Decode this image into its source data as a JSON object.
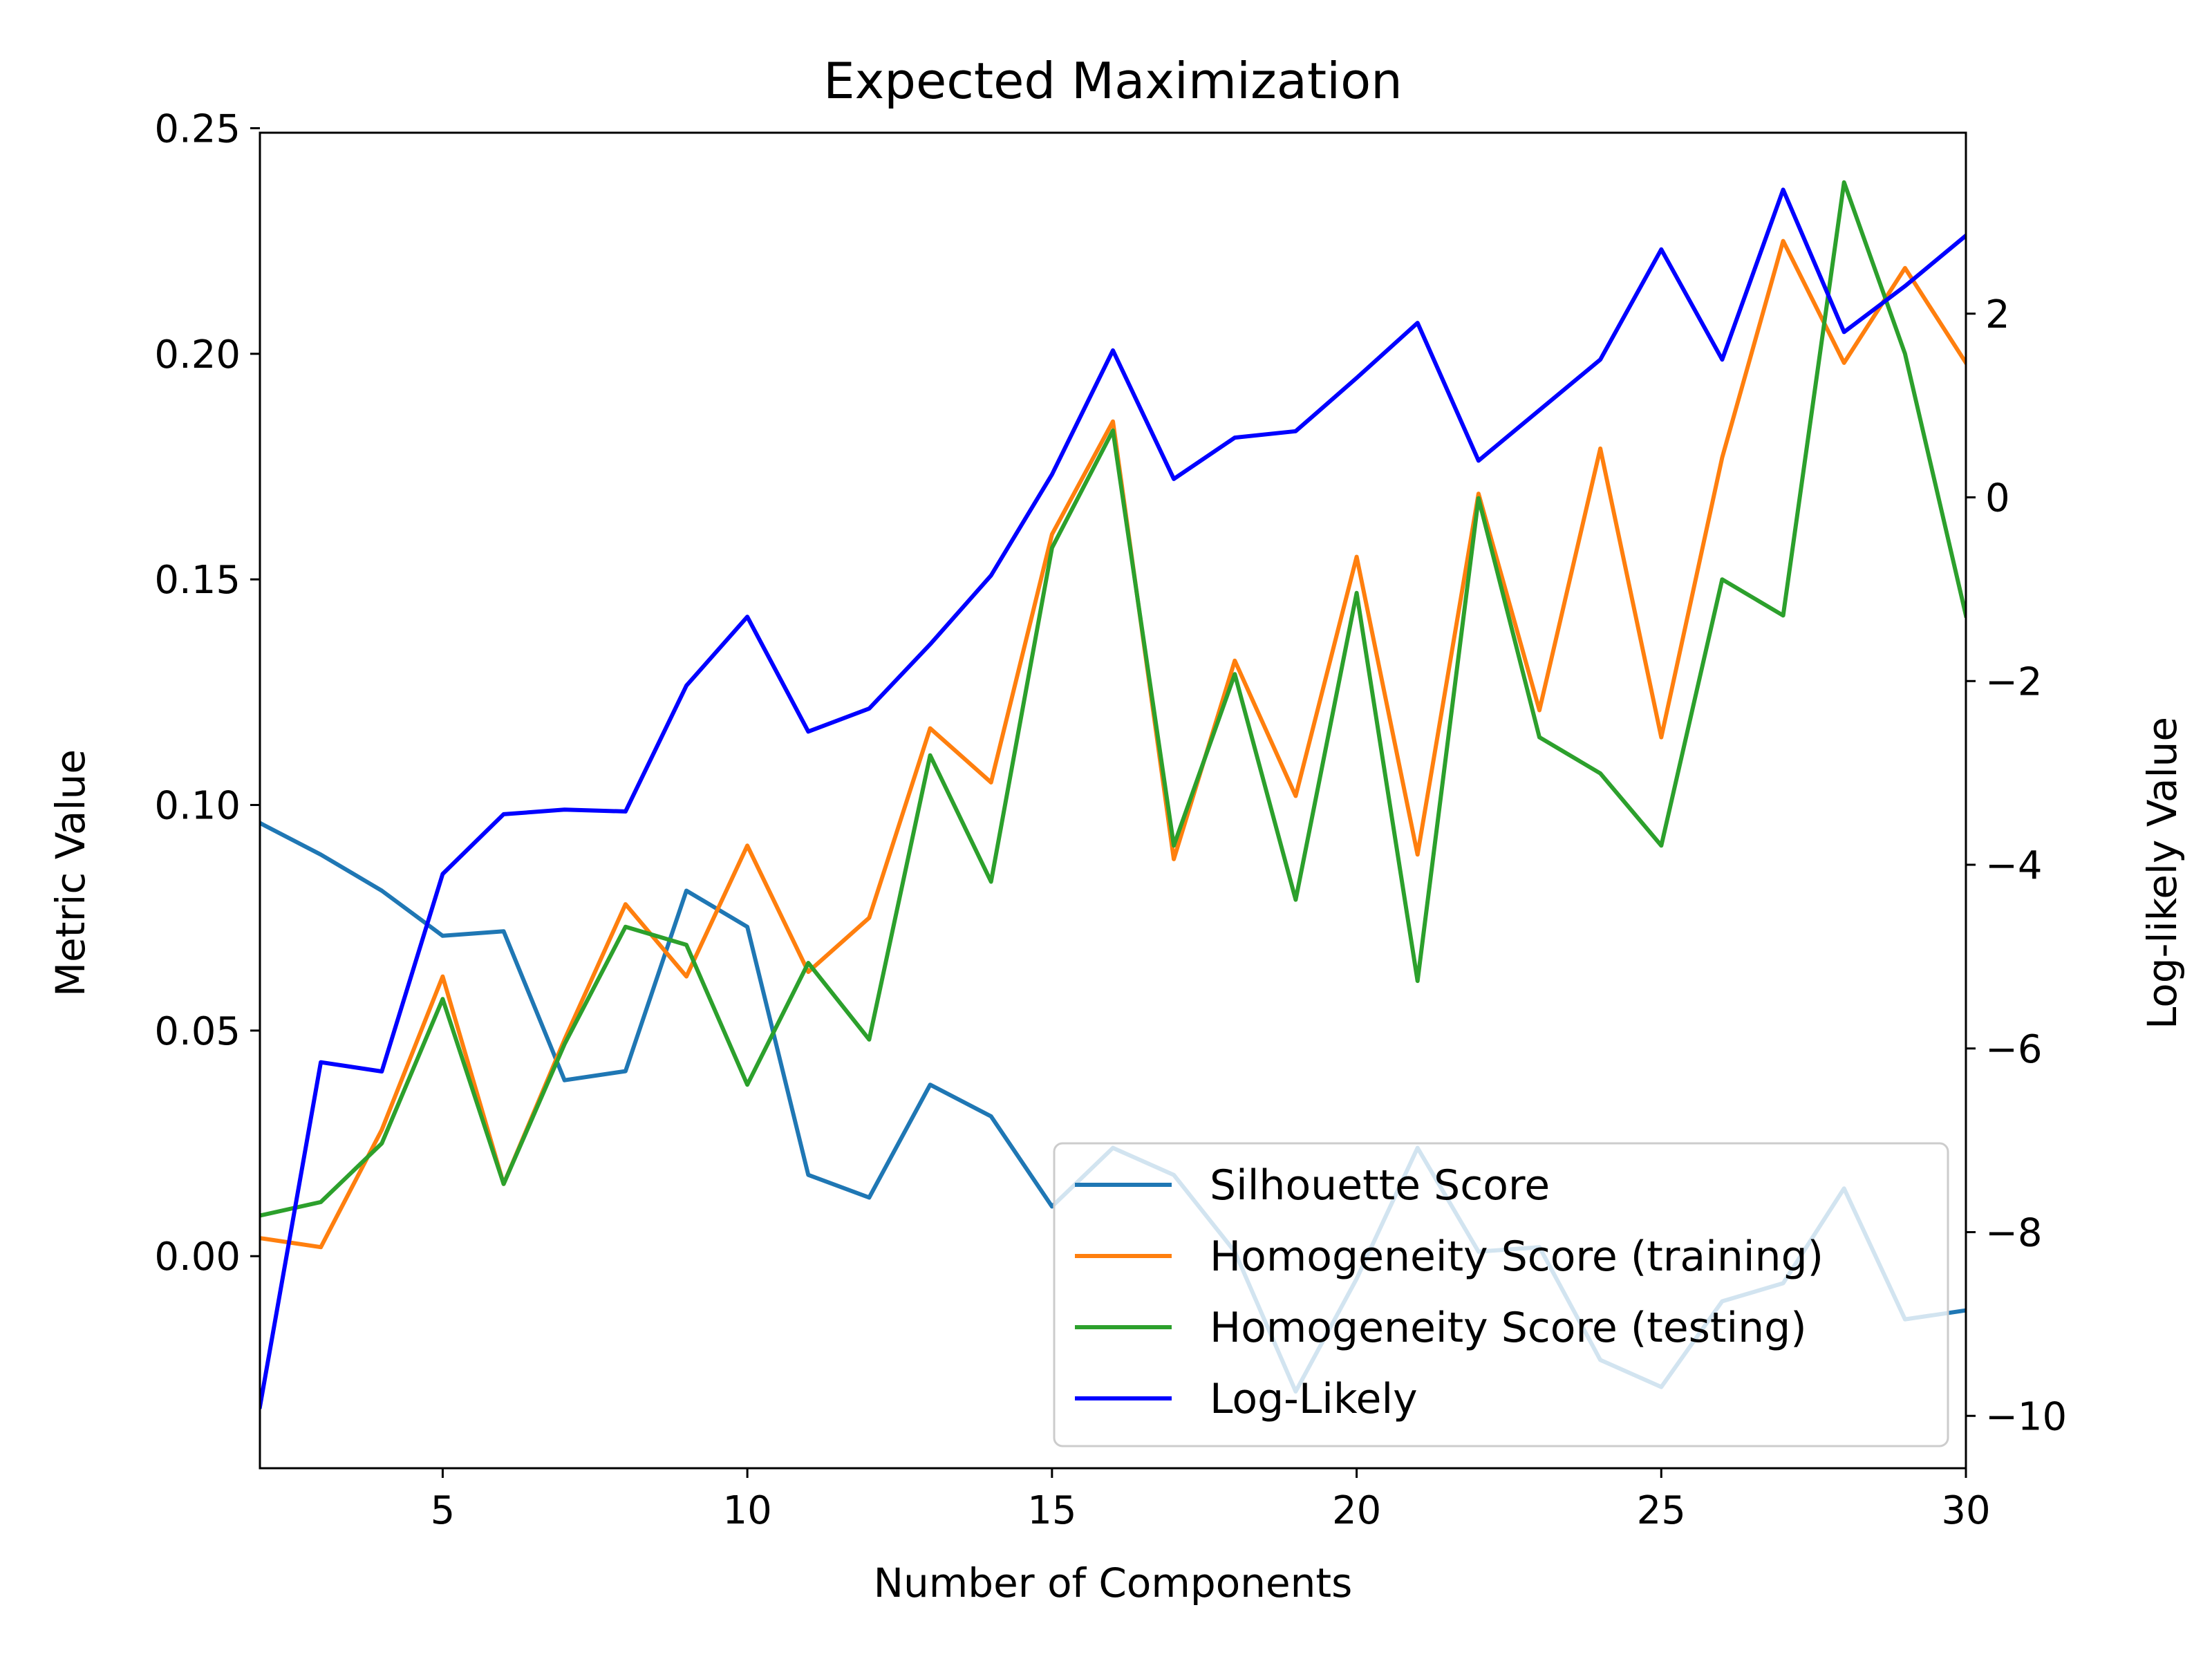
{
  "chart_data": {
    "type": "line",
    "title": "Expected Maximization",
    "xlabel": "Number of Components",
    "ylabel": "Metric Value",
    "y2label": "Log-likely Value",
    "x": [
      2,
      3,
      4,
      5,
      6,
      7,
      8,
      9,
      10,
      11,
      12,
      13,
      14,
      15,
      16,
      17,
      18,
      19,
      20,
      21,
      22,
      23,
      24,
      25,
      26,
      27,
      28,
      29,
      30
    ],
    "xlim": [
      2,
      30
    ],
    "ylim": [
      -0.047,
      0.249
    ],
    "y2lim": [
      -10.57,
      3.97
    ],
    "xticks": [
      5,
      10,
      15,
      20,
      25,
      30
    ],
    "yticks": [
      0.0,
      0.05,
      0.1,
      0.15,
      0.2,
      0.25
    ],
    "ytick_labels": [
      "0.00",
      "0.05",
      "0.10",
      "0.15",
      "0.20",
      "0.25"
    ],
    "y2ticks": [
      -10,
      -8,
      -6,
      -4,
      -2,
      0,
      2
    ],
    "y2tick_labels": [
      "−10",
      "−8",
      "−6",
      "−4",
      "−2",
      "0",
      "2"
    ],
    "grid": false,
    "legend_position": "lower-right",
    "series": [
      {
        "name": "Silhouette Score",
        "axis": "left",
        "color": "#1f77b4",
        "values": [
          0.096,
          0.089,
          0.081,
          0.071,
          0.072,
          0.039,
          0.041,
          0.081,
          0.073,
          0.018,
          0.013,
          0.038,
          0.031,
          0.011,
          0.024,
          0.018,
          0.001,
          -0.03,
          -0.005,
          0.024,
          0.001,
          0.002,
          -0.023,
          -0.029,
          -0.01,
          -0.006,
          0.015,
          -0.014,
          -0.012
        ]
      },
      {
        "name": "Homogeneity Score (training)",
        "axis": "left",
        "color": "#ff7f0e",
        "values": [
          0.004,
          0.002,
          0.028,
          0.062,
          0.016,
          0.048,
          0.078,
          0.062,
          0.091,
          0.063,
          0.075,
          0.117,
          0.105,
          0.16,
          0.185,
          0.088,
          0.132,
          0.102,
          0.155,
          0.089,
          0.169,
          0.121,
          0.179,
          0.115,
          0.177,
          0.225,
          0.198,
          0.219,
          0.198
        ]
      },
      {
        "name": "Homogeneity Score (testing)",
        "axis": "left",
        "color": "#2ca02c",
        "values": [
          0.009,
          0.012,
          0.025,
          0.057,
          0.016,
          0.047,
          0.073,
          0.069,
          0.038,
          0.065,
          0.048,
          0.111,
          0.083,
          0.157,
          0.183,
          0.091,
          0.129,
          0.079,
          0.147,
          0.061,
          0.168,
          0.115,
          0.107,
          0.091,
          0.15,
          0.142,
          0.238,
          0.2,
          0.142
        ]
      },
      {
        "name": "Log-Likely",
        "axis": "right",
        "color": "#0000ff",
        "values": [
          -9.9,
          -6.15,
          -6.25,
          -4.1,
          -3.45,
          -3.4,
          -3.42,
          -2.05,
          -1.3,
          -2.55,
          -2.3,
          -1.6,
          -0.85,
          0.25,
          1.6,
          0.2,
          0.65,
          0.72,
          1.3,
          1.9,
          0.4,
          0.95,
          1.5,
          2.7,
          1.5,
          3.35,
          1.8,
          2.3,
          2.85
        ]
      }
    ]
  }
}
